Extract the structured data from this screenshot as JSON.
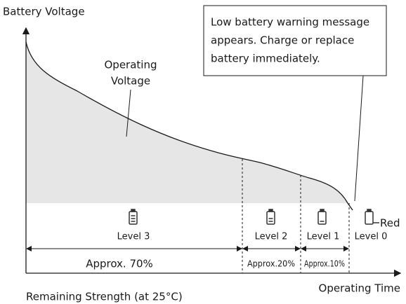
{
  "axes": {
    "y_label": "Battery Voltage",
    "x_label": "Operating Time",
    "caption": "Remaining Strength (at 25°C)"
  },
  "curve_label": [
    "Operating",
    "Voltage"
  ],
  "callout": [
    "Low battery warning message",
    "appears. Charge or replace",
    "battery immediately."
  ],
  "levels": [
    {
      "label": "Level 3",
      "approx": "Approx. 70%"
    },
    {
      "label": "Level 2",
      "approx": "Approx.20%"
    },
    {
      "label": "Level 1",
      "approx": "Approx.10%"
    },
    {
      "label": "Level 0"
    }
  ],
  "red_label": "Red"
}
